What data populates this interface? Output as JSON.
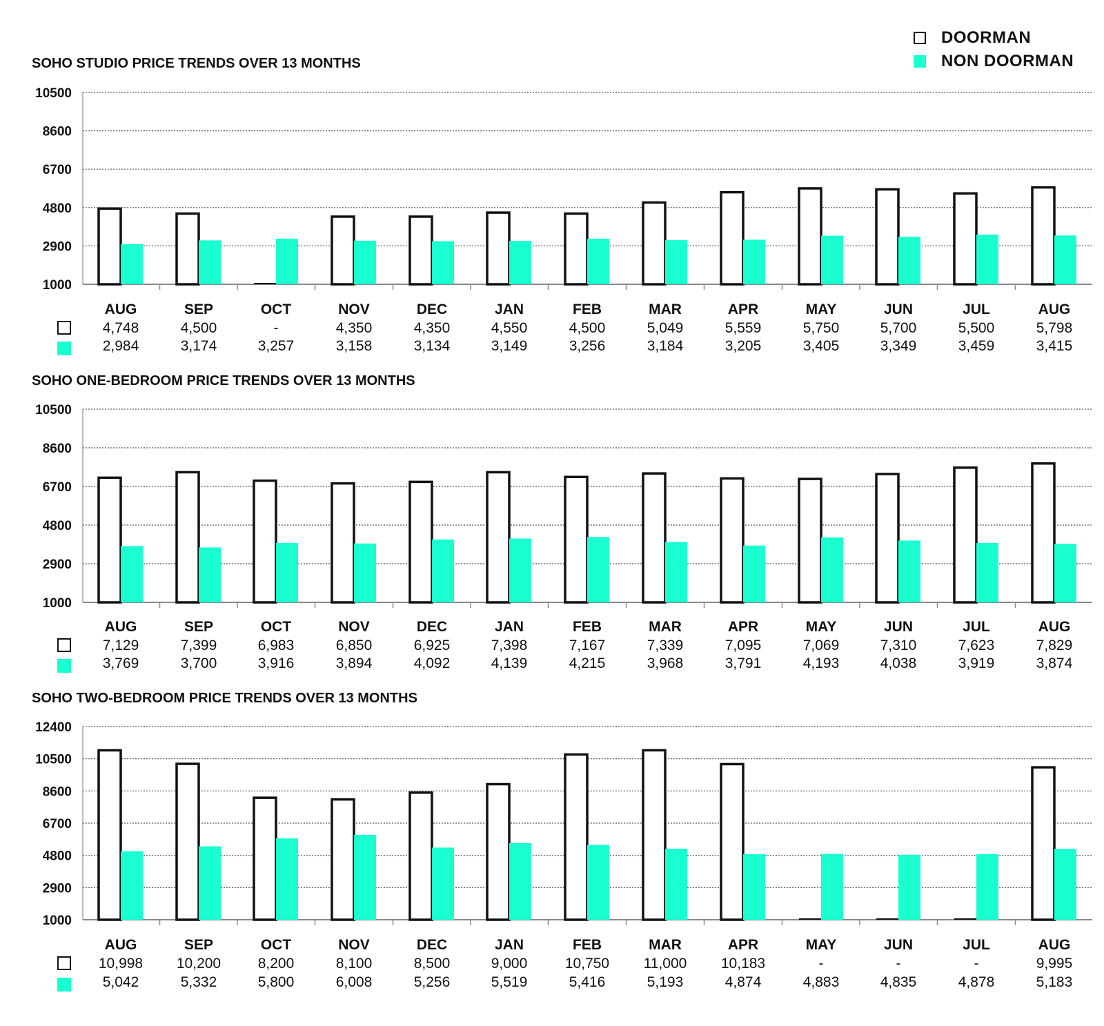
{
  "legend": {
    "doorman": "DOORMAN",
    "non_doorman": "NON DOORMAN"
  },
  "colors": {
    "doorman_fill": "#ffffff",
    "doorman_stroke": "#111111",
    "non_doorman": "#19ffcf",
    "grid": "#555555"
  },
  "chart_data": [
    {
      "type": "bar",
      "title": "SOHO STUDIO PRICE TRENDS OVER 13 MONTHS",
      "categories": [
        "AUG",
        "SEP",
        "OCT",
        "NOV",
        "DEC",
        "JAN",
        "FEB",
        "MAR",
        "APR",
        "MAY",
        "JUN",
        "JUL",
        "AUG"
      ],
      "yticks": [
        "1000",
        "2900",
        "4800",
        "6700",
        "8600",
        "10500"
      ],
      "ylim": [
        1000,
        10500
      ],
      "grid": true,
      "legend_position": "top-right",
      "series": [
        {
          "name": "DOORMAN",
          "values": [
            4748,
            4500,
            null,
            4350,
            4350,
            4550,
            4500,
            5049,
            5559,
            5750,
            5700,
            5500,
            5798
          ],
          "labels": [
            "4,748",
            "4,500",
            "-",
            "4,350",
            "4,350",
            "4,550",
            "4,500",
            "5,049",
            "5,559",
            "5,750",
            "5,700",
            "5,500",
            "5,798"
          ]
        },
        {
          "name": "NON DOORMAN",
          "values": [
            2984,
            3174,
            3257,
            3158,
            3134,
            3149,
            3256,
            3184,
            3205,
            3405,
            3349,
            3459,
            3415
          ],
          "labels": [
            "2,984",
            "3,174",
            "3,257",
            "3,158",
            "3,134",
            "3,149",
            "3,256",
            "3,184",
            "3,205",
            "3,405",
            "3,349",
            "3,459",
            "3,415"
          ]
        }
      ]
    },
    {
      "type": "bar",
      "title": "SOHO ONE-BEDROOM PRICE TRENDS OVER 13 MONTHS",
      "categories": [
        "AUG",
        "SEP",
        "OCT",
        "NOV",
        "DEC",
        "JAN",
        "FEB",
        "MAR",
        "APR",
        "MAY",
        "JUN",
        "JUL",
        "AUG"
      ],
      "yticks": [
        "1000",
        "2900",
        "4800",
        "6700",
        "8600",
        "10500"
      ],
      "ylim": [
        1000,
        10500
      ],
      "grid": true,
      "legend_position": "top-right",
      "series": [
        {
          "name": "DOORMAN",
          "values": [
            7129,
            7399,
            6983,
            6850,
            6925,
            7398,
            7167,
            7339,
            7095,
            7069,
            7310,
            7623,
            7829
          ],
          "labels": [
            "7,129",
            "7,399",
            "6,983",
            "6,850",
            "6,925",
            "7,398",
            "7,167",
            "7,339",
            "7,095",
            "7,069",
            "7,310",
            "7,623",
            "7,829"
          ]
        },
        {
          "name": "NON DOORMAN",
          "values": [
            3769,
            3700,
            3916,
            3894,
            4092,
            4139,
            4215,
            3968,
            3791,
            4193,
            4038,
            3919,
            3874
          ],
          "labels": [
            "3,769",
            "3,700",
            "3,916",
            "3,894",
            "4,092",
            "4,139",
            "4,215",
            "3,968",
            "3,791",
            "4,193",
            "4,038",
            "3,919",
            "3,874"
          ]
        }
      ]
    },
    {
      "type": "bar",
      "title": "SOHO TWO-BEDROOM PRICE TRENDS OVER 13 MONTHS",
      "categories": [
        "AUG",
        "SEP",
        "OCT",
        "NOV",
        "DEC",
        "JAN",
        "FEB",
        "MAR",
        "APR",
        "MAY",
        "JUN",
        "JUL",
        "AUG"
      ],
      "yticks": [
        "1000",
        "2900",
        "4800",
        "6700",
        "8600",
        "10500",
        "12400"
      ],
      "ylim": [
        1000,
        12400
      ],
      "grid": true,
      "legend_position": "top-right",
      "series": [
        {
          "name": "DOORMAN",
          "values": [
            10998,
            10200,
            8200,
            8100,
            8500,
            9000,
            10750,
            11000,
            10183,
            null,
            null,
            null,
            9995
          ],
          "labels": [
            "10,998",
            "10,200",
            "8,200",
            "8,100",
            "8,500",
            "9,000",
            "10,750",
            "11,000",
            "10,183",
            "-",
            "-",
            "-",
            "9,995"
          ]
        },
        {
          "name": "NON DOORMAN",
          "values": [
            5042,
            5332,
            5800,
            6008,
            5256,
            5519,
            5416,
            5193,
            4874,
            4883,
            4835,
            4878,
            5183
          ],
          "labels": [
            "5,042",
            "5,332",
            "5,800",
            "6,008",
            "5,256",
            "5,519",
            "5,416",
            "5,193",
            "4,874",
            "4,883",
            "4,835",
            "4,878",
            "5,183"
          ]
        }
      ]
    }
  ]
}
